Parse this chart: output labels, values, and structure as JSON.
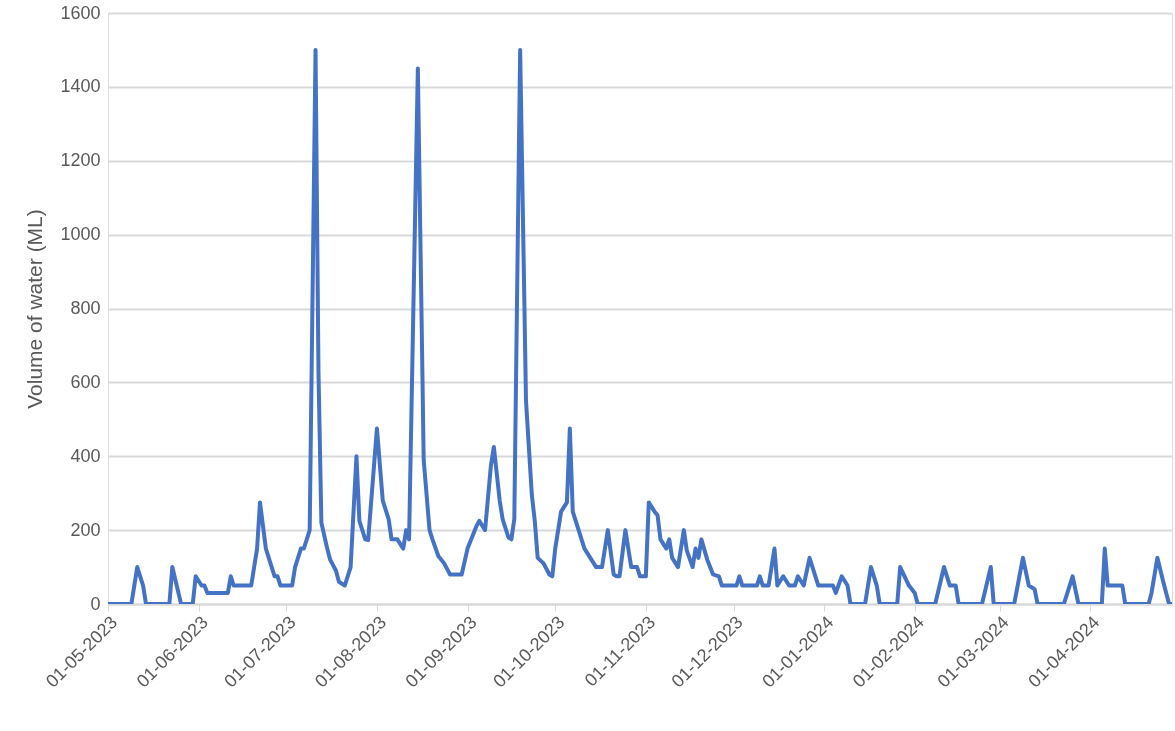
{
  "chart_data": {
    "type": "line",
    "ylabel": "Volume of water (ML)",
    "x": [
      "2023-05-01",
      "2023-05-09",
      "2023-05-11",
      "2023-05-13",
      "2023-05-14",
      "2023-05-22",
      "2023-05-23",
      "2023-05-26",
      "2023-05-30",
      "2023-05-31",
      "2023-06-02",
      "2023-06-03",
      "2023-06-04",
      "2023-06-11",
      "2023-06-12",
      "2023-06-13",
      "2023-06-19",
      "2023-06-21",
      "2023-06-22",
      "2023-06-24",
      "2023-06-27",
      "2023-06-28",
      "2023-06-29",
      "2023-07-03",
      "2023-07-04",
      "2023-07-06",
      "2023-07-07",
      "2023-07-09",
      "2023-07-11",
      "2023-07-12",
      "2023-07-13",
      "2023-07-15",
      "2023-07-16",
      "2023-07-18",
      "2023-07-19",
      "2023-07-21",
      "2023-07-23",
      "2023-07-25",
      "2023-07-26",
      "2023-07-28",
      "2023-07-29",
      "2023-08-01",
      "2023-08-03",
      "2023-08-05",
      "2023-08-06",
      "2023-08-08",
      "2023-08-10",
      "2023-08-11",
      "2023-08-12",
      "2023-08-15",
      "2023-08-17",
      "2023-08-19",
      "2023-08-20",
      "2023-08-22",
      "2023-08-24",
      "2023-08-26",
      "2023-08-30",
      "2023-09-01",
      "2023-09-04",
      "2023-09-05",
      "2023-09-07",
      "2023-09-09",
      "2023-09-10",
      "2023-09-12",
      "2023-09-13",
      "2023-09-15",
      "2023-09-16",
      "2023-09-17",
      "2023-09-19",
      "2023-09-21",
      "2023-09-23",
      "2023-09-24",
      "2023-09-25",
      "2023-09-27",
      "2023-09-29",
      "2023-09-30",
      "2023-10-01",
      "2023-10-03",
      "2023-10-05",
      "2023-10-06",
      "2023-10-07",
      "2023-10-09",
      "2023-10-11",
      "2023-10-13",
      "2023-10-15",
      "2023-10-17",
      "2023-10-19",
      "2023-10-21",
      "2023-10-22",
      "2023-10-23",
      "2023-10-25",
      "2023-10-27",
      "2023-10-29",
      "2023-10-30",
      "2023-11-01",
      "2023-11-02",
      "2023-11-04",
      "2023-11-05",
      "2023-11-06",
      "2023-11-08",
      "2023-11-09",
      "2023-11-10",
      "2023-11-12",
      "2023-11-14",
      "2023-11-15",
      "2023-11-17",
      "2023-11-18",
      "2023-11-19",
      "2023-11-20",
      "2023-11-22",
      "2023-11-24",
      "2023-11-26",
      "2023-11-27",
      "2023-12-02",
      "2023-12-03",
      "2023-12-04",
      "2023-12-09",
      "2023-12-10",
      "2023-12-11",
      "2023-12-13",
      "2023-12-15",
      "2023-12-16",
      "2023-12-18",
      "2023-12-20",
      "2023-12-22",
      "2023-12-23",
      "2023-12-25",
      "2023-12-27",
      "2023-12-30",
      "2024-01-04",
      "2024-01-05",
      "2024-01-07",
      "2024-01-09",
      "2024-01-10",
      "2024-01-15",
      "2024-01-17",
      "2024-01-19",
      "2024-01-20",
      "2024-01-26",
      "2024-01-27",
      "2024-01-30",
      "2024-02-01",
      "2024-02-02",
      "2024-02-08",
      "2024-02-11",
      "2024-02-13",
      "2024-02-15",
      "2024-02-16",
      "2024-02-24",
      "2024-02-27",
      "2024-02-28",
      "2024-03-06",
      "2024-03-09",
      "2024-03-11",
      "2024-03-13",
      "2024-03-14",
      "2024-03-23",
      "2024-03-26",
      "2024-03-28",
      "2024-04-05",
      "2024-04-06",
      "2024-04-07",
      "2024-04-12",
      "2024-04-13",
      "2024-04-21",
      "2024-04-22",
      "2024-04-24",
      "2024-04-26",
      "2024-04-28",
      "2024-04-29"
    ],
    "series": [
      {
        "color": "#4472c4",
        "values": [
          0,
          0,
          100,
          50,
          0,
          0,
          100,
          0,
          0,
          75,
          50,
          50,
          30,
          30,
          75,
          50,
          50,
          150,
          275,
          150,
          75,
          75,
          50,
          50,
          100,
          150,
          150,
          200,
          1500,
          630,
          220,
          150,
          120,
          90,
          60,
          50,
          100,
          400,
          225,
          175,
          173,
          475,
          280,
          230,
          175,
          175,
          150,
          200,
          175,
          1450,
          390,
          200,
          175,
          130,
          110,
          80,
          80,
          150,
          210,
          225,
          200,
          375,
          425,
          280,
          230,
          180,
          175,
          230,
          1500,
          550,
          295,
          225,
          125,
          110,
          80,
          75,
          150,
          250,
          275,
          475,
          250,
          200,
          150,
          125,
          100,
          100,
          200,
          80,
          75,
          75,
          200,
          100,
          100,
          75,
          75,
          275,
          250,
          240,
          175,
          150,
          175,
          125,
          100,
          200,
          145,
          100,
          150,
          125,
          175,
          120,
          80,
          75,
          50,
          50,
          75,
          50,
          50,
          75,
          50,
          50,
          150,
          50,
          75,
          50,
          50,
          75,
          50,
          125,
          50,
          50,
          30,
          75,
          50,
          0,
          0,
          100,
          50,
          0,
          0,
          100,
          50,
          30,
          0,
          0,
          100,
          50,
          50,
          0,
          0,
          100,
          0,
          0,
          125,
          50,
          40,
          0,
          0,
          75,
          0,
          0,
          150,
          50,
          50,
          0,
          0,
          30,
          125,
          60,
          0,
          0
        ]
      }
    ],
    "xlim": [
      "2023-05-01",
      "2024-04-29"
    ],
    "xticks": [
      {
        "value": "2023-05-01",
        "label": "01-05-2023"
      },
      {
        "value": "2023-06-01",
        "label": "01-06-2023"
      },
      {
        "value": "2023-07-01",
        "label": "01-07-2023"
      },
      {
        "value": "2023-08-01",
        "label": "01-08-2023"
      },
      {
        "value": "2023-09-01",
        "label": "01-09-2023"
      },
      {
        "value": "2023-10-01",
        "label": "01-10-2023"
      },
      {
        "value": "2023-11-01",
        "label": "01-11-2023"
      },
      {
        "value": "2023-12-01",
        "label": "01-12-2023"
      },
      {
        "value": "2024-01-01",
        "label": "01-01-2024"
      },
      {
        "value": "2024-02-01",
        "label": "01-02-2024"
      },
      {
        "value": "2024-03-01",
        "label": "01-03-2024"
      },
      {
        "value": "2024-04-01",
        "label": "01-04-2024"
      }
    ],
    "ylim": [
      0,
      1600
    ],
    "yticks": [
      0,
      200,
      400,
      600,
      800,
      1000,
      1200,
      1400,
      1600
    ],
    "grid": "y",
    "marker": "none",
    "line_style": "solid"
  }
}
